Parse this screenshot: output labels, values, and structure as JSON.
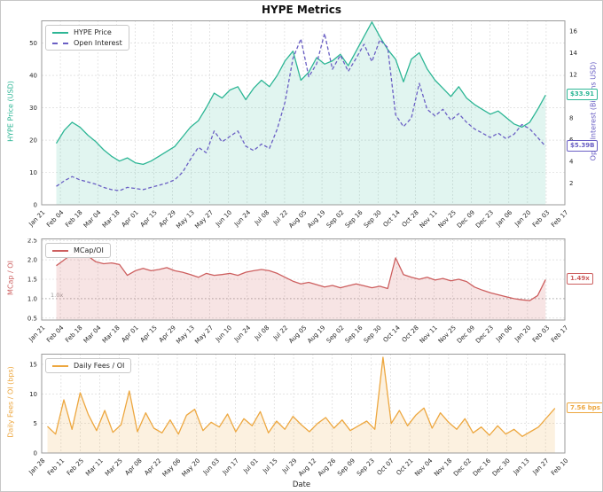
{
  "title": "HYPE Metrics",
  "xlabel": "Date",
  "chart_data": [
    {
      "type": "line",
      "key": "hype-price-oi",
      "x_tick_labels": [
        "Jan 21",
        "Feb 04",
        "Feb 18",
        "Mar 04",
        "Mar 18",
        "Apr 01",
        "Apr 15",
        "Apr 29",
        "May 13",
        "May 27",
        "Jun 10",
        "Jun 24",
        "Jul 08",
        "Jul 22",
        "Aug 05",
        "Aug 19",
        "Sep 02",
        "Sep 16",
        "Sep 30",
        "Oct 14",
        "Oct 28",
        "Nov 11",
        "Nov 25",
        "Dec 09",
        "Dec 23",
        "Jan 06",
        "Jan 20",
        "Feb 03",
        "Feb 17"
      ],
      "left_axis": {
        "label": "HYPE Price (USD)",
        "color": "#2db695",
        "range": [
          0,
          57
        ],
        "tick_values": [
          0,
          10,
          20,
          30,
          40,
          50
        ],
        "tick_labels": [
          "0",
          "10",
          "20",
          "30",
          "40",
          "50"
        ]
      },
      "right_axis": {
        "label": "Open Interest (Billions USD)",
        "color": "#6a5fc4",
        "range": [
          0,
          17
        ],
        "tick_values": [
          2,
          4,
          6,
          8,
          10,
          12,
          14,
          16
        ],
        "tick_labels": [
          "2",
          "4",
          "6",
          "8",
          "10",
          "12",
          "14",
          "16"
        ]
      },
      "series": [
        {
          "name": "HYPE Price",
          "key": "hype-price",
          "axis": "left",
          "color": "#2db695",
          "fill": "rgba(45,182,149,0.14)",
          "dash": null,
          "x0": 0.028,
          "x1": 0.963,
          "values": [
            19,
            23,
            25.5,
            24,
            21.5,
            19.5,
            17,
            15,
            13.5,
            14.5,
            13,
            12.5,
            13.5,
            15,
            16.5,
            18,
            21,
            24,
            26,
            30,
            34.5,
            33,
            35.5,
            36.5,
            32.5,
            36,
            38.5,
            36.5,
            40,
            44.5,
            47.5,
            38.5,
            41,
            45.5,
            43.5,
            44.5,
            46.5,
            43,
            47.5,
            52,
            56.5,
            52,
            48,
            45,
            38,
            45,
            47,
            42,
            38.5,
            36,
            33.5,
            36.5,
            33,
            31,
            29.5,
            28,
            29,
            27,
            25,
            24,
            25.5,
            29.5,
            33.91
          ]
        },
        {
          "name": "Open Interest",
          "key": "open-interest",
          "axis": "right",
          "color": "#6a5fc4",
          "fill": null,
          "dash": "4,2.5",
          "x0": 0.028,
          "x1": 0.963,
          "values": [
            1.7,
            2.2,
            2.6,
            2.3,
            2.1,
            1.9,
            1.6,
            1.4,
            1.3,
            1.6,
            1.5,
            1.4,
            1.6,
            1.8,
            2.0,
            2.3,
            3.0,
            4.2,
            5.3,
            4.8,
            6.8,
            5.8,
            6.3,
            6.8,
            5.4,
            5.0,
            5.6,
            5.2,
            7.0,
            9.5,
            13.5,
            15.3,
            11.8,
            13.0,
            15.8,
            12.5,
            13.8,
            12.3,
            13.5,
            14.8,
            13.2,
            15.2,
            14.5,
            8.3,
            7.2,
            8.0,
            11.2,
            8.8,
            8.2,
            8.8,
            7.8,
            8.4,
            7.6,
            7.0,
            6.6,
            6.2,
            6.6,
            6.1,
            6.5,
            7.4,
            7.0,
            6.2,
            5.39
          ]
        }
      ],
      "annotations": [
        {
          "text": "$33.91",
          "color": "#2db695",
          "series": 0
        },
        {
          "text": "$5.39B",
          "color": "#6a5fc4",
          "series": 1
        }
      ]
    },
    {
      "type": "line",
      "key": "mcap-oi-ratio",
      "x_tick_labels": [
        "Jan 21",
        "Feb 04",
        "Feb 18",
        "Mar 04",
        "Mar 18",
        "Apr 01",
        "Apr 15",
        "Apr 29",
        "May 13",
        "May 27",
        "Jun 10",
        "Jun 24",
        "Jul 08",
        "Jul 22",
        "Aug 05",
        "Aug 19",
        "Sep 02",
        "Sep 16",
        "Sep 30",
        "Oct 14",
        "Oct 28",
        "Nov 11",
        "Nov 25",
        "Dec 09",
        "Dec 23",
        "Jan 06",
        "Jan 20",
        "Feb 03",
        "Feb 17"
      ],
      "left_axis": {
        "label": "MCap / OI",
        "color": "#cd5f5f",
        "range": [
          0.45,
          2.55
        ],
        "tick_values": [
          0.5,
          1.0,
          1.5,
          2.0,
          2.5
        ],
        "tick_labels": [
          "0.5",
          "1.0",
          "1.5",
          "2.0",
          "2.5"
        ]
      },
      "ref_line": {
        "value": 1.0,
        "label": "1.0x",
        "color": "#9a9a9a"
      },
      "series": [
        {
          "name": "MCap/OI",
          "key": "mcap-oi",
          "axis": "left",
          "color": "#cd5f5f",
          "fill": "rgba(205,95,95,0.17)",
          "dash": null,
          "x0": 0.028,
          "x1": 0.963,
          "values": [
            1.85,
            2.0,
            2.15,
            2.2,
            2.1,
            1.95,
            1.9,
            1.92,
            1.88,
            1.6,
            1.72,
            1.78,
            1.72,
            1.75,
            1.8,
            1.72,
            1.68,
            1.62,
            1.55,
            1.65,
            1.6,
            1.62,
            1.65,
            1.6,
            1.68,
            1.72,
            1.75,
            1.72,
            1.65,
            1.55,
            1.45,
            1.38,
            1.42,
            1.36,
            1.3,
            1.34,
            1.28,
            1.33,
            1.38,
            1.33,
            1.28,
            1.32,
            1.26,
            2.05,
            1.62,
            1.55,
            1.5,
            1.55,
            1.48,
            1.52,
            1.46,
            1.5,
            1.44,
            1.3,
            1.22,
            1.15,
            1.1,
            1.05,
            1.0,
            0.97,
            0.95,
            1.08,
            1.49
          ]
        }
      ],
      "annotations": [
        {
          "text": "1.49x",
          "color": "#cd5f5f",
          "series": 0
        }
      ]
    },
    {
      "type": "line",
      "key": "daily-fees-oi-ratio",
      "x_tick_labels": [
        "Jan 28",
        "Feb 11",
        "Feb 25",
        "Mar 11",
        "Mar 25",
        "Apr 08",
        "Apr 22",
        "May 06",
        "May 20",
        "Jun 03",
        "Jun 17",
        "Jul 01",
        "Jul 15",
        "Jul 29",
        "Aug 12",
        "Aug 26",
        "Sep 09",
        "Sep 23",
        "Oct 07",
        "Oct 21",
        "Nov 04",
        "Nov 18",
        "Dec 02",
        "Dec 16",
        "Dec 30",
        "Jan 13",
        "Jan 27",
        "Feb 10"
      ],
      "left_axis": {
        "label": "Daily Fees / OI (bps)",
        "color": "#eda73f",
        "range": [
          0,
          16.8
        ],
        "tick_values": [
          0,
          5,
          10,
          15
        ],
        "tick_labels": [
          "0",
          "5",
          "10",
          "15"
        ]
      },
      "series": [
        {
          "name": "Daily Fees / OI",
          "key": "daily-fees-oi",
          "axis": "left",
          "color": "#eda73f",
          "fill": "rgba(237,167,63,0.16)",
          "dash": null,
          "x0": 0.011,
          "x1": 0.981,
          "values": [
            4.5,
            3.2,
            9.0,
            4.0,
            10.2,
            6.5,
            3.8,
            7.2,
            3.5,
            4.8,
            10.5,
            3.6,
            6.8,
            4.2,
            3.4,
            5.6,
            3.2,
            6.4,
            7.4,
            3.8,
            5.2,
            4.4,
            6.6,
            3.6,
            5.8,
            4.6,
            7.0,
            3.4,
            5.4,
            4.0,
            6.2,
            4.8,
            3.6,
            5.0,
            6.0,
            4.2,
            5.6,
            3.8,
            4.6,
            5.4,
            4.0,
            16.2,
            5.0,
            7.2,
            4.6,
            6.4,
            7.6,
            4.2,
            6.8,
            5.2,
            4.0,
            5.8,
            3.4,
            4.4,
            3.0,
            4.6,
            3.2,
            4.0,
            2.8,
            3.6,
            4.4,
            6.0,
            7.56
          ]
        }
      ],
      "annotations": [
        {
          "text": "7.56 bps",
          "color": "#eda73f",
          "series": 0
        }
      ]
    }
  ]
}
